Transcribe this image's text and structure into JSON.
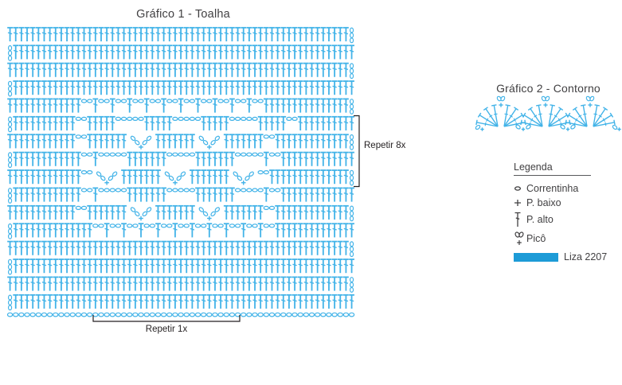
{
  "page": {
    "background": "#ffffff",
    "text_color": "#414042",
    "bracket_color": "#231f20"
  },
  "chart1": {
    "title": "Gráfico 1 - Toalha",
    "symbol_color": "#42b3e8",
    "stitch_columns": 60,
    "rows": [
      {
        "side": "R",
        "tokens": [
          [
            "T",
            60
          ]
        ]
      },
      {
        "side": "L",
        "tokens": [
          [
            "T",
            60
          ]
        ]
      },
      {
        "side": "R",
        "tokens": [
          [
            "T",
            60
          ]
        ]
      },
      {
        "side": "L",
        "tokens": [
          [
            "T",
            60
          ]
        ]
      },
      {
        "side": "R",
        "tokens": [
          [
            "T",
            13
          ],
          [
            "M",
            11
          ],
          [
            "T",
            14
          ]
        ]
      },
      {
        "side": "L",
        "tokens": [
          [
            "T",
            11
          ],
          [
            "o",
            2
          ],
          [
            "T",
            5
          ],
          [
            "o",
            5
          ],
          [
            "T",
            5
          ],
          [
            "o",
            5
          ],
          [
            "T",
            5
          ],
          [
            "o",
            5
          ],
          [
            "T",
            5
          ],
          [
            "o",
            2
          ],
          [
            "T",
            10
          ]
        ]
      },
      {
        "side": "R",
        "tokens": [
          [
            "T",
            12
          ],
          [
            "o",
            2
          ],
          [
            "T",
            7
          ],
          [
            "V",
            1
          ],
          [
            "T",
            7
          ],
          [
            "V",
            1
          ],
          [
            "T",
            7
          ],
          [
            "o",
            2
          ],
          [
            "T",
            13
          ]
        ]
      },
      {
        "side": "L",
        "tokens": [
          [
            "T",
            12
          ],
          [
            "o",
            2
          ],
          [
            "T",
            1
          ],
          [
            "o",
            5
          ],
          [
            "T",
            7
          ],
          [
            "o",
            5
          ],
          [
            "T",
            7
          ],
          [
            "o",
            5
          ],
          [
            "T",
            1
          ],
          [
            "o",
            2
          ],
          [
            "T",
            13
          ]
        ]
      },
      {
        "side": "R",
        "tokens": [
          [
            "T",
            13
          ],
          [
            "o",
            2
          ],
          [
            "V",
            1
          ],
          [
            "T",
            7
          ],
          [
            "V",
            1
          ],
          [
            "T",
            7
          ],
          [
            "V",
            1
          ],
          [
            "o",
            2
          ],
          [
            "T",
            14
          ]
        ]
      },
      {
        "side": "L",
        "tokens": [
          [
            "T",
            12
          ],
          [
            "o",
            2
          ],
          [
            "T",
            1
          ],
          [
            "o",
            5
          ],
          [
            "T",
            7
          ],
          [
            "o",
            5
          ],
          [
            "T",
            7
          ],
          [
            "o",
            5
          ],
          [
            "T",
            1
          ],
          [
            "o",
            2
          ],
          [
            "T",
            13
          ]
        ]
      },
      {
        "side": "R",
        "tokens": [
          [
            "T",
            12
          ],
          [
            "o",
            2
          ],
          [
            "T",
            7
          ],
          [
            "V",
            1
          ],
          [
            "T",
            7
          ],
          [
            "V",
            1
          ],
          [
            "T",
            7
          ],
          [
            "o",
            2
          ],
          [
            "T",
            13
          ]
        ]
      },
      {
        "side": "L",
        "tokens": [
          [
            "T",
            14
          ],
          [
            "M",
            11
          ],
          [
            "T",
            13
          ]
        ]
      },
      {
        "side": "R",
        "tokens": [
          [
            "T",
            60
          ]
        ]
      },
      {
        "side": "L",
        "tokens": [
          [
            "T",
            60
          ]
        ]
      },
      {
        "side": "R",
        "tokens": [
          [
            "T",
            60
          ]
        ]
      },
      {
        "side": "L",
        "tokens": [
          [
            "T",
            60
          ]
        ]
      }
    ],
    "foundation_row": "chain",
    "repeat_side": {
      "label": "Repetir 8x",
      "from_row": 6,
      "to_row": 9
    },
    "repeat_bottom": {
      "label": "Repetir 1x"
    }
  },
  "chart2": {
    "title": "Gráfico 2 - Contorno",
    "symbol_color": "#42b3e8",
    "scallops": 3,
    "stitches_per_fan": 4,
    "picot_on_top": true
  },
  "legend": {
    "title": "Legenda",
    "items": [
      {
        "symbol": "chain-icon",
        "label": "Correntinha"
      },
      {
        "symbol": "plus-icon",
        "label": "P. baixo"
      },
      {
        "symbol": "tall-stitch-icon",
        "label": "P. alto"
      },
      {
        "symbol": "picot-icon",
        "label": "Picô"
      }
    ],
    "yarn": {
      "color": "#1d9bd7",
      "label": "Liza 2207"
    }
  }
}
